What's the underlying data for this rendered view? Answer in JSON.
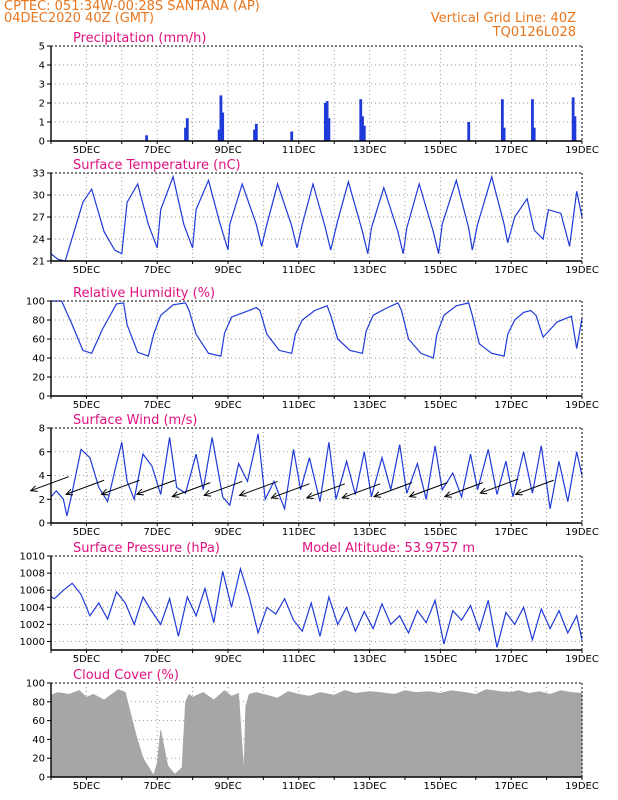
{
  "header": {
    "station_line": "CPTEC:    051:34W-00:28S    SANTANA (AP)",
    "date_line": "04DEC2020 40Z (GMT)",
    "grid_line": "Vertical Grid Line: 40Z",
    "code_line": "TQ0126L028"
  },
  "colors": {
    "header": "#e8761e",
    "title": "#e0117f",
    "line": "#1f3ad8",
    "bars": "#1f3ad8",
    "cloud": "#a6a6a6",
    "arrows": "#000000"
  },
  "chart_data": [
    {
      "id": "precip",
      "type": "bar",
      "title": "Precipitation (mm/h)",
      "ylim": [
        0,
        5
      ],
      "yticks": [
        0,
        1,
        2,
        3,
        4,
        5
      ],
      "xlim": [
        4,
        19
      ],
      "xtick_labels": [
        "5DEC",
        "7DEC",
        "9DEC",
        "11DEC",
        "13DEC",
        "15DEC",
        "17DEC",
        "19DEC"
      ],
      "xtick_values": [
        5,
        7,
        9,
        11,
        13,
        15,
        17,
        19
      ],
      "points": [
        [
          6.7,
          0.3
        ],
        [
          7.8,
          0.7
        ],
        [
          7.85,
          1.2
        ],
        [
          8.75,
          0.6
        ],
        [
          8.8,
          2.4
        ],
        [
          8.85,
          1.5
        ],
        [
          9.75,
          0.6
        ],
        [
          9.8,
          0.9
        ],
        [
          10.8,
          0.5
        ],
        [
          11.75,
          2.0
        ],
        [
          11.8,
          2.1
        ],
        [
          11.85,
          1.2
        ],
        [
          12.75,
          2.2
        ],
        [
          12.8,
          1.3
        ],
        [
          12.85,
          0.8
        ],
        [
          15.8,
          1.0
        ],
        [
          16.75,
          2.2
        ],
        [
          16.8,
          0.7
        ],
        [
          17.6,
          2.2
        ],
        [
          17.65,
          0.7
        ],
        [
          18.75,
          2.3
        ],
        [
          18.8,
          1.3
        ]
      ],
      "grid": true
    },
    {
      "id": "temp",
      "type": "line",
      "title": "Surface Temperature (nC)",
      "ylim": [
        21,
        33
      ],
      "yticks": [
        21,
        24,
        27,
        30,
        33
      ],
      "xlim": [
        4,
        19
      ],
      "xtick_labels": [
        "5DEC",
        "7DEC",
        "9DEC",
        "11DEC",
        "13DEC",
        "15DEC",
        "17DEC",
        "19DEC"
      ],
      "xtick_values": [
        5,
        7,
        9,
        11,
        13,
        15,
        17,
        19
      ],
      "x": [
        4.0,
        4.2,
        4.4,
        4.9,
        5.15,
        5.5,
        5.8,
        6.0,
        6.15,
        6.45,
        6.75,
        7.0,
        7.1,
        7.45,
        7.75,
        8.0,
        8.1,
        8.45,
        8.75,
        9.0,
        9.05,
        9.4,
        9.8,
        9.95,
        10.1,
        10.4,
        10.8,
        10.95,
        11.1,
        11.4,
        11.75,
        11.9,
        12.1,
        12.4,
        12.8,
        12.95,
        13.05,
        13.4,
        13.8,
        13.95,
        14.05,
        14.4,
        14.8,
        14.95,
        15.05,
        15.45,
        15.8,
        15.9,
        16.05,
        16.45,
        16.8,
        16.9,
        17.1,
        17.45,
        17.65,
        17.9,
        18.05,
        18.4,
        18.65,
        18.85,
        19.0
      ],
      "y": [
        22.0,
        21.2,
        21.0,
        29.0,
        30.8,
        25.0,
        22.5,
        22.0,
        29.0,
        31.5,
        26.0,
        22.8,
        28.0,
        32.5,
        26.0,
        22.8,
        28.0,
        32.0,
        26.5,
        22.5,
        26.0,
        31.5,
        26.0,
        23.0,
        26.0,
        31.5,
        25.8,
        22.8,
        26.0,
        31.5,
        25.5,
        22.5,
        26.5,
        31.8,
        25.0,
        22.0,
        25.5,
        31.0,
        25.0,
        22.0,
        25.5,
        31.5,
        25.0,
        22.0,
        26.0,
        32.0,
        25.5,
        22.5,
        26.0,
        32.5,
        26.0,
        23.5,
        27.0,
        29.5,
        25.2,
        24.0,
        28.0,
        27.5,
        23.0,
        30.5,
        27.0
      ],
      "grid": true
    },
    {
      "id": "rh",
      "type": "line",
      "title": "Relative Humidity (%)",
      "ylim": [
        0,
        100
      ],
      "yticks": [
        0,
        20,
        40,
        60,
        80,
        100
      ],
      "xlim": [
        4,
        19
      ],
      "xtick_labels": [
        "5DEC",
        "7DEC",
        "9DEC",
        "11DEC",
        "13DEC",
        "15DEC",
        "17DEC",
        "19DEC"
      ],
      "xtick_values": [
        5,
        7,
        9,
        11,
        13,
        15,
        17,
        19
      ],
      "x": [
        4.0,
        4.3,
        4.6,
        4.9,
        5.15,
        5.45,
        5.85,
        6.05,
        6.15,
        6.45,
        6.75,
        6.9,
        7.1,
        7.45,
        7.8,
        7.9,
        8.1,
        8.45,
        8.8,
        8.9,
        9.1,
        9.45,
        9.8,
        9.9,
        10.1,
        10.45,
        10.8,
        10.9,
        11.1,
        11.45,
        11.8,
        11.9,
        12.1,
        12.45,
        12.8,
        12.9,
        13.1,
        13.45,
        13.8,
        13.9,
        14.1,
        14.45,
        14.8,
        14.9,
        15.1,
        15.45,
        15.8,
        15.9,
        16.1,
        16.45,
        16.8,
        16.9,
        17.1,
        17.35,
        17.55,
        17.7,
        17.9,
        18.3,
        18.7,
        18.85,
        19.0
      ],
      "y": [
        100,
        100,
        75,
        48,
        45,
        70,
        97,
        98,
        75,
        46,
        42,
        65,
        85,
        96,
        98,
        90,
        65,
        45,
        42,
        66,
        83,
        88,
        93,
        90,
        65,
        48,
        45,
        65,
        80,
        90,
        95,
        85,
        60,
        48,
        45,
        68,
        85,
        92,
        98,
        90,
        60,
        45,
        40,
        65,
        85,
        95,
        98,
        85,
        55,
        45,
        42,
        65,
        80,
        88,
        90,
        85,
        62,
        78,
        84,
        50,
        82
      ],
      "grid": true
    },
    {
      "id": "wind",
      "type": "line",
      "title": "Surface Wind (m/s)",
      "ylim": [
        0,
        8
      ],
      "yticks": [
        0,
        2,
        4,
        6,
        8
      ],
      "xlim": [
        4,
        19
      ],
      "xtick_labels": [
        "5DEC",
        "7DEC",
        "9DEC",
        "11DEC",
        "13DEC",
        "15DEC",
        "17DEC",
        "19DEC"
      ],
      "xtick_values": [
        5,
        7,
        9,
        11,
        13,
        15,
        17,
        19
      ],
      "x": [
        4.0,
        4.15,
        4.35,
        4.45,
        4.6,
        4.85,
        5.1,
        5.35,
        5.6,
        5.85,
        6.0,
        6.15,
        6.35,
        6.6,
        6.85,
        7.1,
        7.35,
        7.55,
        7.8,
        8.1,
        8.3,
        8.55,
        8.85,
        9.05,
        9.3,
        9.55,
        9.85,
        10.05,
        10.3,
        10.6,
        10.85,
        11.05,
        11.3,
        11.6,
        11.85,
        12.05,
        12.35,
        12.6,
        12.85,
        13.05,
        13.35,
        13.6,
        13.85,
        14.05,
        14.35,
        14.6,
        14.85,
        15.05,
        15.35,
        15.6,
        15.85,
        16.05,
        16.35,
        16.6,
        16.85,
        17.05,
        17.35,
        17.6,
        17.85,
        18.1,
        18.35,
        18.6,
        18.85,
        19.0
      ],
      "y": [
        2.2,
        2.7,
        2.0,
        0.6,
        2.6,
        6.2,
        5.5,
        3.0,
        1.8,
        5.0,
        6.8,
        3.5,
        2.0,
        5.8,
        4.8,
        2.4,
        7.2,
        3.0,
        2.5,
        5.8,
        2.8,
        7.2,
        2.2,
        1.5,
        5.0,
        3.5,
        7.5,
        2.0,
        3.5,
        1.2,
        6.2,
        2.8,
        5.5,
        1.8,
        6.8,
        2.0,
        5.2,
        2.4,
        6.0,
        2.2,
        5.5,
        2.8,
        6.6,
        2.5,
        5.0,
        2.0,
        6.5,
        2.8,
        4.2,
        2.2,
        5.8,
        2.8,
        6.2,
        2.4,
        5.2,
        2.2,
        6.0,
        2.5,
        6.5,
        1.2,
        5.2,
        1.8,
        6.0,
        4.0
      ],
      "arrows": [
        [
          4.5,
          3.9
        ],
        [
          5.5,
          3.6
        ],
        [
          6.5,
          3.6
        ],
        [
          7.5,
          3.6
        ],
        [
          8.5,
          3.4
        ],
        [
          9.4,
          3.5
        ],
        [
          10.4,
          3.5
        ],
        [
          11.3,
          3.3
        ],
        [
          12.3,
          3.3
        ],
        [
          13.3,
          3.3
        ],
        [
          14.2,
          3.4
        ],
        [
          15.2,
          3.4
        ],
        [
          16.2,
          3.4
        ],
        [
          17.2,
          3.7
        ],
        [
          18.2,
          3.6
        ]
      ],
      "grid": true
    },
    {
      "id": "press",
      "type": "line",
      "title": "Surface Pressure (hPa)",
      "annotation": "Model Altitude: 53.9757 m",
      "ylim": [
        999,
        1010
      ],
      "yticks": [
        1000,
        1002,
        1004,
        1006,
        1008,
        1010
      ],
      "xlim": [
        4,
        19
      ],
      "xtick_labels": [
        "5DEC",
        "7DEC",
        "9DEC",
        "11DEC",
        "13DEC",
        "15DEC",
        "17DEC",
        "19DEC"
      ],
      "xtick_values": [
        5,
        7,
        9,
        11,
        13,
        15,
        17,
        19
      ],
      "x": [
        4.0,
        4.1,
        4.35,
        4.6,
        4.85,
        5.1,
        5.35,
        5.6,
        5.85,
        6.1,
        6.35,
        6.6,
        6.85,
        7.1,
        7.35,
        7.6,
        7.85,
        8.1,
        8.35,
        8.6,
        8.85,
        9.1,
        9.35,
        9.6,
        9.85,
        10.1,
        10.35,
        10.6,
        10.85,
        11.1,
        11.35,
        11.6,
        11.85,
        12.1,
        12.35,
        12.6,
        12.85,
        13.1,
        13.35,
        13.6,
        13.85,
        14.1,
        14.35,
        14.6,
        14.85,
        15.1,
        15.35,
        15.6,
        15.85,
        16.1,
        16.35,
        16.6,
        16.85,
        17.1,
        17.35,
        17.6,
        17.85,
        18.1,
        18.35,
        18.6,
        18.85,
        19.0
      ],
      "y": [
        1005.2,
        1005.0,
        1006.0,
        1006.8,
        1005.5,
        1003.0,
        1004.5,
        1002.6,
        1005.8,
        1004.5,
        1002.0,
        1005.2,
        1003.5,
        1002.0,
        1005.0,
        1000.6,
        1005.2,
        1003.0,
        1006.2,
        1002.2,
        1008.2,
        1004.0,
        1008.5,
        1005.2,
        1001.0,
        1004.0,
        1003.2,
        1005.0,
        1002.5,
        1001.2,
        1004.5,
        1000.6,
        1005.2,
        1002.0,
        1004.0,
        1001.2,
        1003.5,
        1001.5,
        1004.4,
        1002.0,
        1003.0,
        1001.0,
        1003.6,
        1002.2,
        1004.8,
        999.7,
        1003.6,
        1002.5,
        1004.2,
        1001.3,
        1004.8,
        999.3,
        1003.4,
        1002.0,
        1004.0,
        1000.2,
        1003.8,
        1001.5,
        1003.6,
        1001.0,
        1003.0,
        1000.2
      ],
      "grid": true
    },
    {
      "id": "cloud",
      "type": "area",
      "title": "Cloud Cover (%)",
      "ylim": [
        0,
        100
      ],
      "yticks": [
        0,
        20,
        40,
        60,
        80,
        100
      ],
      "xlim": [
        4,
        19
      ],
      "xtick_labels": [
        "5DEC",
        "7DEC",
        "9DEC",
        "11DEC",
        "13DEC",
        "15DEC",
        "17DEC",
        "19DEC"
      ],
      "xtick_values": [
        5,
        7,
        9,
        11,
        13,
        15,
        17,
        19
      ],
      "x": [
        4.0,
        4.2,
        4.5,
        4.8,
        5.0,
        5.2,
        5.5,
        5.9,
        6.1,
        6.4,
        6.6,
        6.8,
        6.9,
        7.0,
        7.1,
        7.3,
        7.5,
        7.7,
        7.8,
        7.9,
        8.0,
        8.3,
        8.6,
        8.9,
        9.1,
        9.3,
        9.45,
        9.5,
        9.6,
        9.8,
        10.1,
        10.4,
        10.7,
        11.0,
        11.3,
        11.6,
        12.0,
        12.3,
        12.6,
        13.0,
        13.3,
        13.7,
        14.0,
        14.3,
        14.7,
        15.0,
        15.3,
        15.7,
        16.0,
        16.3,
        16.7,
        17.0,
        17.2,
        17.5,
        17.8,
        18.1,
        18.4,
        18.7,
        19.0
      ],
      "y": [
        87,
        90,
        88,
        92,
        85,
        88,
        82,
        93,
        90,
        45,
        20,
        8,
        2,
        15,
        50,
        12,
        3,
        10,
        80,
        88,
        85,
        90,
        82,
        92,
        86,
        89,
        5,
        75,
        88,
        90,
        87,
        84,
        91,
        88,
        86,
        90,
        87,
        92,
        89,
        91,
        90,
        88,
        92,
        90,
        91,
        89,
        92,
        90,
        88,
        93,
        91,
        90,
        92,
        89,
        91,
        88,
        92,
        90,
        89
      ],
      "grid": true
    }
  ]
}
